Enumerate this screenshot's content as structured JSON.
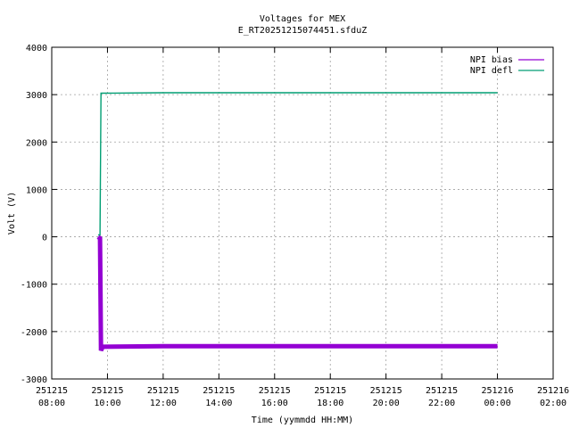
{
  "chart_data": {
    "type": "line",
    "title": "Voltages for MEX",
    "subtitle": "E_RT20251215074451.sfduZ",
    "xlabel": "Time (yymmdd HH:MM)",
    "ylabel": "Volt (V)",
    "xlim": [
      "2025-12-15 08:00",
      "2025-12-16 02:00"
    ],
    "ylim": [
      -3000,
      4000
    ],
    "x_ticks": [
      {
        "date": "251215",
        "time": "08:00"
      },
      {
        "date": "251215",
        "time": "10:00"
      },
      {
        "date": "251215",
        "time": "12:00"
      },
      {
        "date": "251215",
        "time": "14:00"
      },
      {
        "date": "251215",
        "time": "16:00"
      },
      {
        "date": "251215",
        "time": "18:00"
      },
      {
        "date": "251215",
        "time": "20:00"
      },
      {
        "date": "251215",
        "time": "22:00"
      },
      {
        "date": "251216",
        "time": "00:00"
      },
      {
        "date": "251216",
        "time": "02:00"
      }
    ],
    "y_ticks": [
      "4000",
      "3000",
      "2000",
      "1000",
      "0",
      "-1000",
      "-2000",
      "-3000"
    ],
    "grid": true,
    "legend_position": "top-right",
    "series": [
      {
        "name": "NPI bias",
        "color": "#9400d3",
        "points": [
          [
            "2025-12-15 09:40",
            0
          ],
          [
            "2025-12-15 09:44",
            -30
          ],
          [
            "2025-12-15 09:46",
            -2400
          ],
          [
            "2025-12-15 09:50",
            -2320
          ],
          [
            "2025-12-15 12:00",
            -2310
          ],
          [
            "2025-12-15 16:00",
            -2310
          ],
          [
            "2025-12-15 20:00",
            -2310
          ],
          [
            "2025-12-16 00:00",
            -2310
          ]
        ]
      },
      {
        "name": "NPI defl",
        "color": "#009e73",
        "points": [
          [
            "2025-12-15 09:40",
            40
          ],
          [
            "2025-12-15 09:44",
            40
          ],
          [
            "2025-12-15 09:46",
            3030
          ],
          [
            "2025-12-15 12:00",
            3040
          ],
          [
            "2025-12-15 14:00",
            3040
          ],
          [
            "2025-12-15 16:00",
            3040
          ],
          [
            "2025-12-15 20:00",
            3040
          ],
          [
            "2025-12-16 00:00",
            3040
          ]
        ]
      }
    ]
  }
}
